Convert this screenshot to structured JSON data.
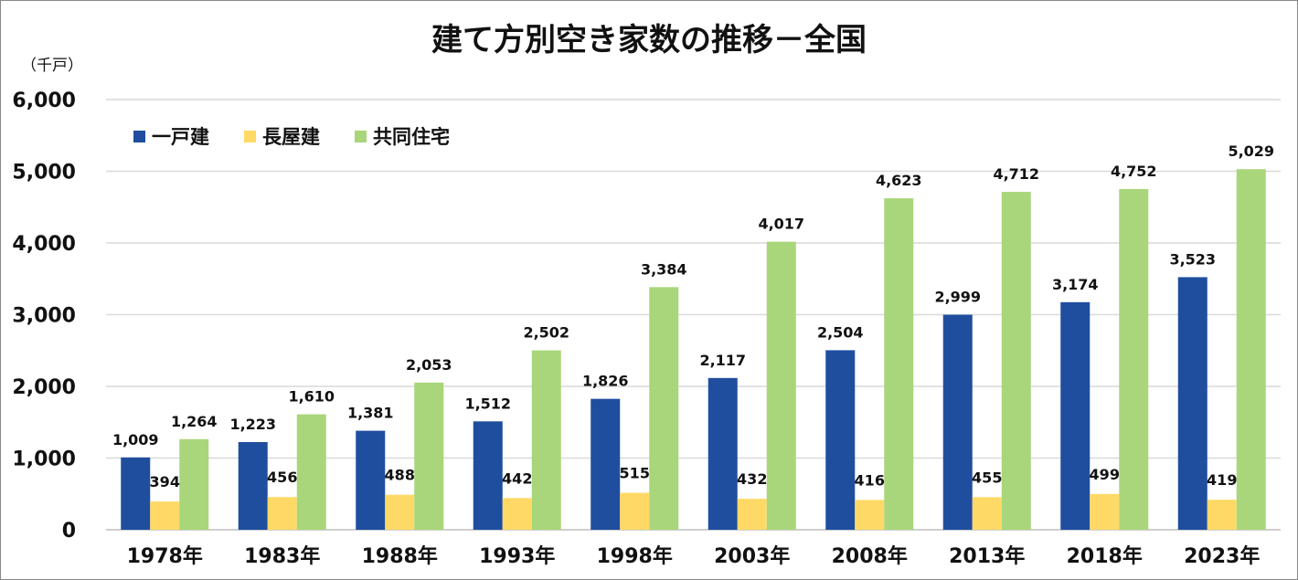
{
  "chart_data": {
    "type": "bar",
    "title": "建て方別空き家数の推移－全国",
    "ylabel": "（千戸）",
    "xlabel": "",
    "ylim": [
      0,
      6000
    ],
    "yticks": [
      "0",
      "1,000",
      "2,000",
      "3,000",
      "4,000",
      "5,000",
      "6,000"
    ],
    "grid": true,
    "legend_position": "top-left",
    "categories": [
      "1978年",
      "1983年",
      "1988年",
      "1993年",
      "1998年",
      "2003年",
      "2008年",
      "2013年",
      "2018年",
      "2023年"
    ],
    "series": [
      {
        "name": "一戸建",
        "color": "#1F4E9F",
        "values": [
          1009,
          1223,
          1381,
          1512,
          1826,
          2117,
          2504,
          2999,
          3174,
          3523
        ]
      },
      {
        "name": "長屋建",
        "color": "#FFD966",
        "values": [
          394,
          456,
          488,
          442,
          515,
          432,
          416,
          455,
          499,
          419
        ]
      },
      {
        "name": "共同住宅",
        "color": "#A9D67A",
        "values": [
          1264,
          1610,
          2053,
          2502,
          3384,
          4017,
          4623,
          4712,
          4752,
          5029
        ]
      }
    ]
  }
}
